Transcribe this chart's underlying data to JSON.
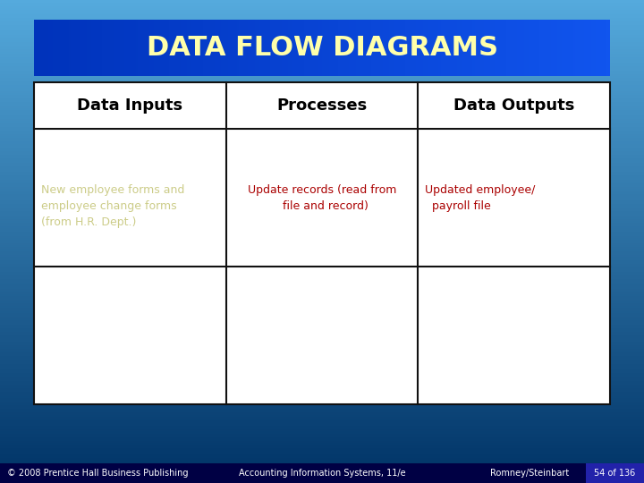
{
  "title": "DATA FLOW DIAGRAMS",
  "title_color": "#FFFFAA",
  "title_bg_left": "#1155DD",
  "title_bg_right": "#0033CC",
  "bg_top": "#55AADD",
  "bg_bottom": "#003366",
  "col_headers": [
    "Data Inputs",
    "Processes",
    "Data Outputs"
  ],
  "header_color": "#000000",
  "header_fontsize": 13,
  "row1_col0_text": "New employee forms and\nemployee change forms\n(from H.R. Dept.)",
  "row1_col0_color": "#CCCC88",
  "row1_col1_text": "Update records (read from\n  file and record)",
  "row1_col1_color": "#AA0000",
  "row1_col2_text": "Updated employee/\n  payroll file",
  "row1_col2_color": "#AA0000",
  "cell_fontsize": 9,
  "title_fontsize": 22,
  "footer_left": "© 2008 Prentice Hall Business Publishing",
  "footer_center": "Accounting Information Systems, 11/e",
  "footer_right": "Romney/Steinbart",
  "footer_page": "54 of 136",
  "footer_bg": "#000044",
  "footer_color": "#FFFFFF",
  "footer_page_bg": "#2222AA",
  "footer_fontsize": 7
}
